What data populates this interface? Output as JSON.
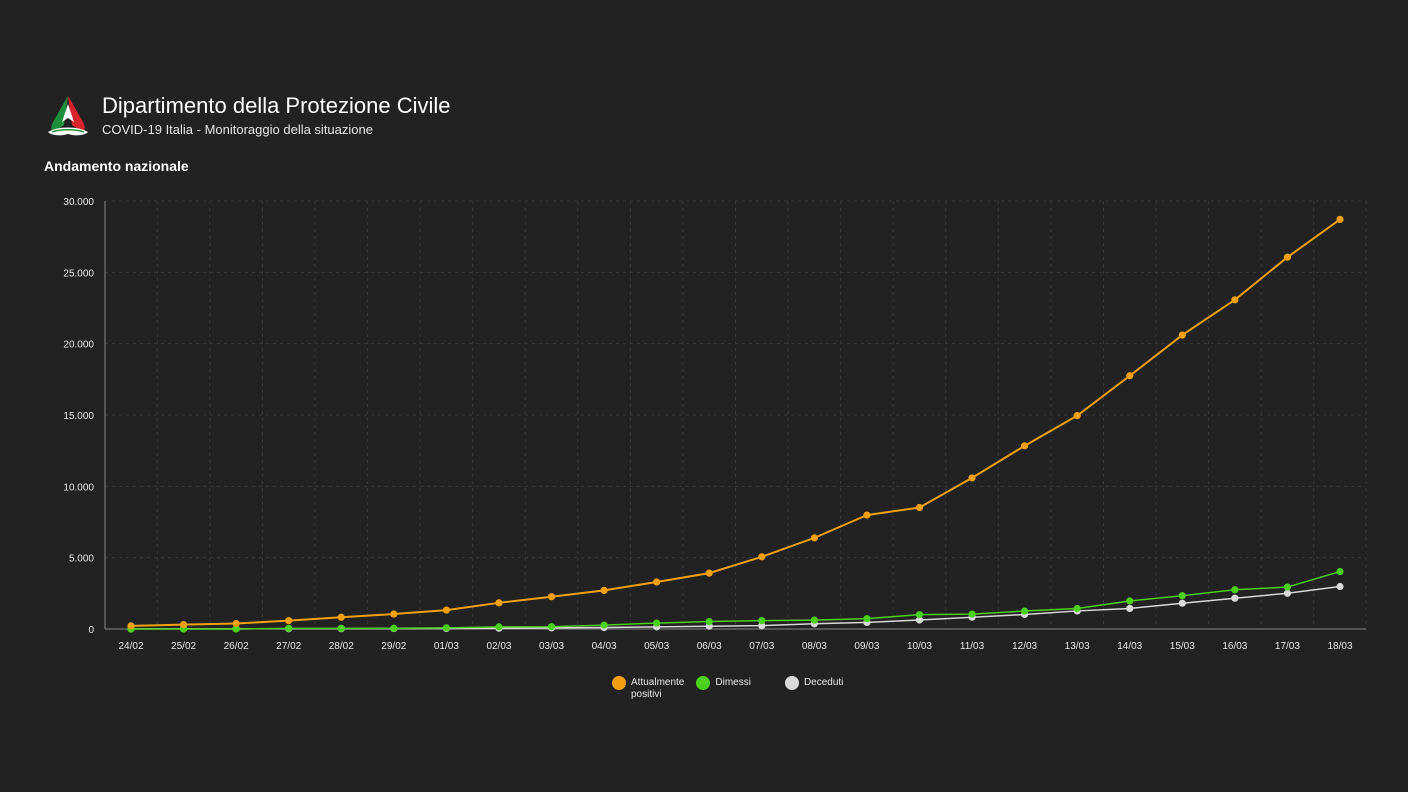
{
  "header": {
    "title": "Dipartimento della Protezione Civile",
    "subtitle": "COVID-19 Italia - Monitoraggio della situazione",
    "logo_icon": "protezione-civile-logo-icon"
  },
  "section": {
    "title": "Andamento nazionale"
  },
  "colors": {
    "background": "#222222",
    "grid": "#3a3a3a",
    "axis": "#888888",
    "attualmente_positivi": "#f5a00f",
    "dimessi": "#4cd11a",
    "deceduti": "#d9d9d9"
  },
  "legend": [
    {
      "name": "Attualmente positivi",
      "line1": "Attualmente",
      "line2": "positivi",
      "color": "#f5a00f"
    },
    {
      "name": "Dimessi",
      "line1": "Dimessi",
      "line2": "",
      "color": "#4cd11a"
    },
    {
      "name": "Deceduti",
      "line1": "Deceduti",
      "line2": "",
      "color": "#d9d9d9"
    }
  ],
  "chart_data": {
    "type": "line",
    "title": "Andamento nazionale",
    "xlabel": "",
    "ylabel": "",
    "ylim": [
      0,
      30000
    ],
    "y_ticks": [
      0,
      5000,
      10000,
      15000,
      20000,
      25000,
      30000
    ],
    "y_tick_labels": [
      "0",
      "5.000",
      "10.000",
      "15.000",
      "20.000",
      "25.000",
      "30.000"
    ],
    "grid": true,
    "legend_position": "bottom",
    "categories": [
      "24/02",
      "25/02",
      "26/02",
      "27/02",
      "28/02",
      "29/02",
      "01/03",
      "02/03",
      "03/03",
      "04/03",
      "05/03",
      "06/03",
      "07/03",
      "08/03",
      "09/03",
      "10/03",
      "11/03",
      "12/03",
      "13/03",
      "14/03",
      "15/03",
      "16/03",
      "17/03",
      "18/03"
    ],
    "series": [
      {
        "name": "Attualmente positivi",
        "color": "#f5a00f",
        "values": [
          221,
          311,
          385,
          588,
          821,
          1049,
          1327,
          1835,
          2263,
          2706,
          3296,
          3916,
          5061,
          6387,
          7985,
          8514,
          10590,
          12839,
          14955,
          17750,
          20603,
          23073,
          26062,
          28710
        ]
      },
      {
        "name": "Dimessi",
        "color": "#4cd11a",
        "values": [
          1,
          1,
          3,
          45,
          46,
          50,
          83,
          149,
          160,
          276,
          414,
          523,
          589,
          622,
          724,
          1004,
          1045,
          1258,
          1439,
          1966,
          2335,
          2749,
          2941,
          4025
        ]
      },
      {
        "name": "Deceduti",
        "color": "#d9d9d9",
        "values": [
          7,
          10,
          12,
          17,
          21,
          29,
          34,
          52,
          79,
          107,
          148,
          197,
          233,
          366,
          463,
          631,
          827,
          1016,
          1266,
          1441,
          1809,
          2158,
          2503,
          2978
        ]
      }
    ]
  }
}
